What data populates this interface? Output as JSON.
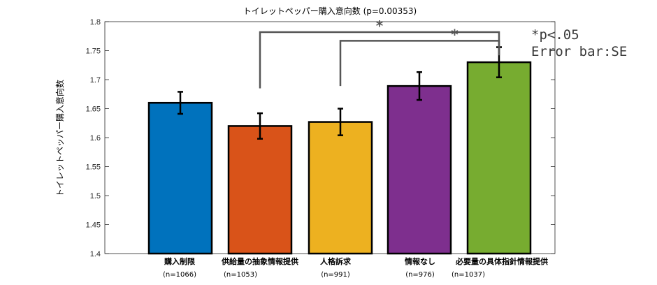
{
  "chart_data": {
    "type": "bar",
    "title": "トイレットペッパー購入意向数 (p=0.00353)",
    "ylabel": "トイレットペッパー購入意向数",
    "xlabel": "",
    "ylim": [
      1.4,
      1.8
    ],
    "yticks": [
      "1.4",
      "1.45",
      "1.5",
      "1.55",
      "1.6",
      "1.65",
      "1.7",
      "1.75",
      "1.8"
    ],
    "categories": [
      {
        "label": "購入制限",
        "n": "(n=1066)",
        "value": 1.66,
        "se": 0.019,
        "color": "#0072BD"
      },
      {
        "label": "供給量の抽象情報提供",
        "n": "(n=1053)",
        "value": 1.62,
        "se": 0.022,
        "color": "#D95319"
      },
      {
        "label": "人格訴求",
        "n": "(n=991)",
        "value": 1.627,
        "se": 0.023,
        "color": "#EDB120"
      },
      {
        "label": "情報なし",
        "n": "(n=976)",
        "value": 1.689,
        "se": 0.024,
        "color": "#7E2F8E"
      },
      {
        "label": "必要量の具体指針情報提供",
        "n": "(n=1037)",
        "value": 1.73,
        "se": 0.026,
        "color": "#77AC30"
      }
    ],
    "significance": [
      {
        "from": 1,
        "to": 4,
        "mark": "*",
        "y": 1.782
      },
      {
        "from": 2,
        "to": 4,
        "mark": "*",
        "y": 1.767
      }
    ],
    "legend": [
      "*p<.05",
      "Error bar:SE"
    ],
    "grid": false
  }
}
